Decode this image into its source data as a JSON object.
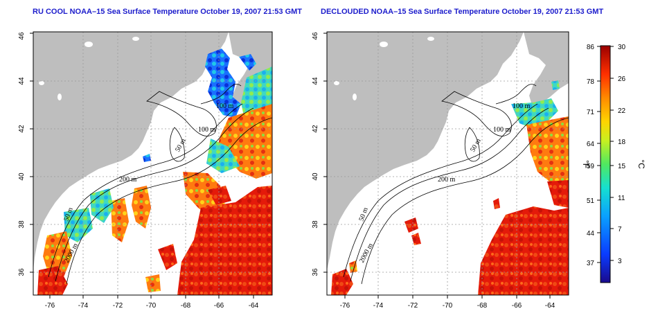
{
  "left_panel": {
    "title": "RU COOL NOAA–15 Sea Surface Temperature October 19, 2007 21:53 GMT"
  },
  "right_panel": {
    "title": "DECLOUDED NOAA–15 Sea Surface Temperature October 19, 2007 21:53 GMT"
  },
  "axes": {
    "lon_ticks": [
      "-76",
      "-74",
      "-72",
      "-70",
      "-68",
      "-66",
      "-64"
    ],
    "lat_ticks": [
      "36",
      "38",
      "40",
      "42",
      "44",
      "46"
    ]
  },
  "contours": {
    "labels": [
      "100 m",
      "100 m",
      "50 m",
      "200 m",
      "50 m",
      "2000 m"
    ]
  },
  "colorbar": {
    "fahrenheit_ticks": [
      "86",
      "78",
      "71",
      "64",
      "59",
      "51",
      "44",
      "37"
    ],
    "celsius_ticks": [
      "30",
      "26",
      "22",
      "18",
      "15",
      "11",
      "7",
      "3"
    ],
    "fahrenheit_unit": "°F",
    "celsius_unit": "°C",
    "range_celsius": [
      0,
      30
    ]
  },
  "colors": {
    "land": "#bebebe",
    "ocean": "#ffffff",
    "title": "#1c1ccc",
    "grid": "#9a9a9a"
  }
}
